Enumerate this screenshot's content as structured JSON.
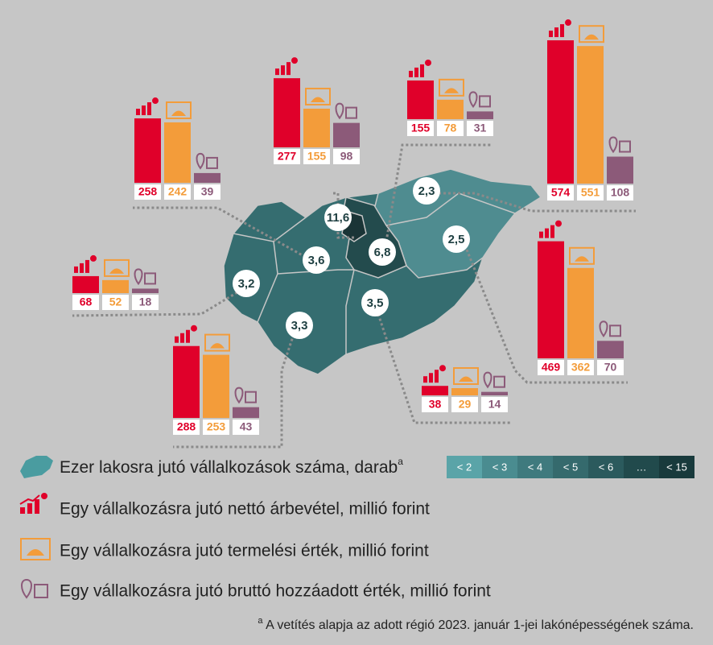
{
  "regions": [
    {
      "density": "11,6",
      "values": [
        277,
        155,
        98
      ]
    },
    {
      "density": "6,8",
      "values": [
        155,
        78,
        31
      ]
    },
    {
      "density": "2,3",
      "values": [
        574,
        551,
        108
      ]
    },
    {
      "density": "2,5",
      "values": [
        469,
        362,
        70
      ]
    },
    {
      "density": "3,5",
      "values": [
        38,
        29,
        14
      ]
    },
    {
      "density": "3,3",
      "values": [
        288,
        253,
        43
      ]
    },
    {
      "density": "3,2",
      "values": [
        68,
        52,
        18
      ]
    },
    {
      "density": "3,6",
      "values": [
        258,
        242,
        39
      ]
    }
  ],
  "legend": {
    "items": [
      {
        "text": "Ezer lakosra jutó vállalkozások száma, darab",
        "sup": "a"
      },
      {
        "text": "Egy vállalkozásra jutó nettó árbevétel, millió forint"
      },
      {
        "text": "Egy vállalkozásra jutó termelési érték, millió forint"
      },
      {
        "text": "Egy vállalkozásra jutó bruttó hozzáadott érték, millió forint"
      }
    ],
    "scale": [
      "< 2",
      "< 3",
      "< 4",
      "< 5",
      "< 6",
      "…",
      "< 15"
    ]
  },
  "footnote": {
    "sup": "a",
    "text": " A vetítés alapja az adott régió 2023. január 1-jei lakónépességének száma."
  }
}
